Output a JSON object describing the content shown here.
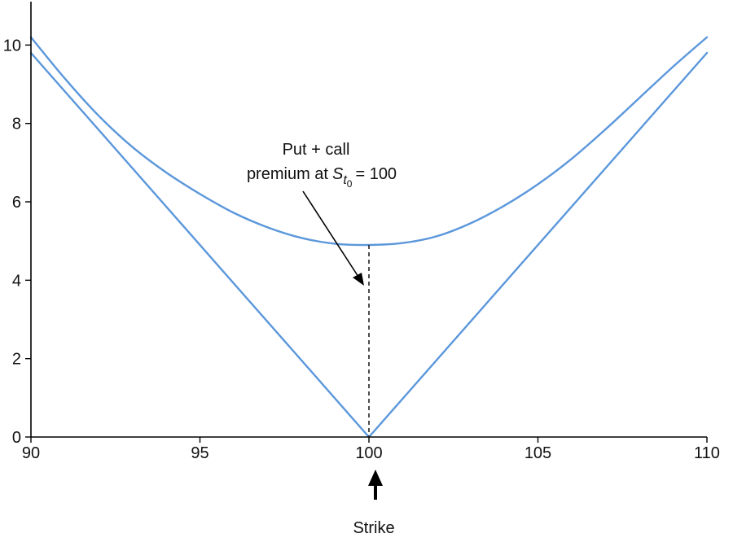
{
  "chart_data": {
    "type": "line",
    "title": "",
    "xlabel": "",
    "ylabel": "",
    "xlim": [
      90,
      110
    ],
    "ylim": [
      0,
      10.9
    ],
    "x_ticks": [
      90,
      95,
      100,
      105,
      110
    ],
    "y_ticks": [
      0,
      2,
      4,
      6,
      8,
      10
    ],
    "x_tick_labels": [
      "90",
      "95",
      "100",
      "105",
      "110"
    ],
    "y_tick_labels": [
      "0",
      "2",
      "4",
      "6",
      "8",
      "10"
    ],
    "grid": false,
    "legend": "none",
    "line_color": "#5b97db",
    "series": [
      {
        "x": [
          90,
          91,
          92,
          93,
          94,
          95,
          96,
          97,
          98,
          99,
          100,
          101,
          102,
          103,
          104,
          105,
          106,
          107,
          108,
          109,
          110
        ],
        "values": [
          10.2,
          9.15,
          8.2,
          7.4,
          6.75,
          6.2,
          5.72,
          5.35,
          5.08,
          4.93,
          4.9,
          4.95,
          5.12,
          5.45,
          5.9,
          6.45,
          7.1,
          7.85,
          8.65,
          9.45,
          10.2
        ]
      },
      {
        "x": [
          90,
          100,
          110
        ],
        "values": [
          9.8,
          0,
          9.8
        ]
      }
    ],
    "annotations": {
      "premium_line1": "Put + call",
      "premium_line2_prefix": "premium at",
      "premium_symbol": "S",
      "premium_subscript": "t",
      "premium_subsubscript": "0",
      "premium_eq": "= 100",
      "strike_label": "Strike",
      "premium_x": 100,
      "premium_y": 4.9
    }
  }
}
